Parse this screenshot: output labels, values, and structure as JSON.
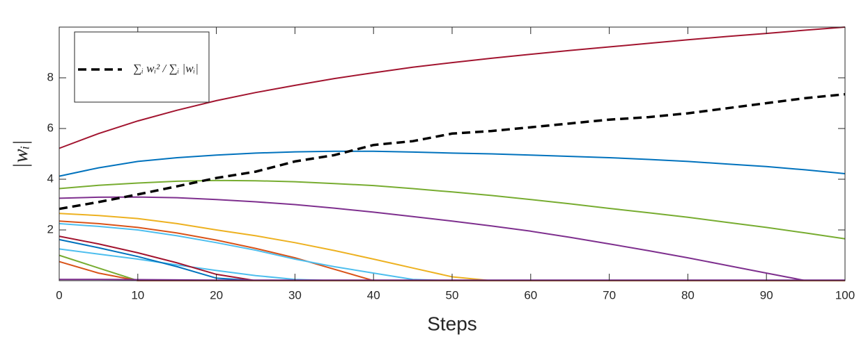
{
  "chart_data": {
    "type": "line",
    "xlabel": "Steps",
    "ylabel": "|wᵢ|",
    "x": [
      0,
      5,
      10,
      15,
      20,
      25,
      30,
      35,
      40,
      45,
      50,
      55,
      60,
      65,
      70,
      75,
      80,
      85,
      90,
      95,
      100
    ],
    "xlim": [
      0,
      100
    ],
    "xticks": [
      0,
      10,
      20,
      30,
      40,
      50,
      60,
      70,
      80,
      90,
      100
    ],
    "ylim": [
      0,
      10
    ],
    "yticks": [
      2,
      4,
      6,
      8
    ],
    "grid": false,
    "legend": "upper left",
    "series": [
      {
        "color": "#a2142f",
        "values": [
          5.22,
          5.8,
          6.3,
          6.72,
          7.1,
          7.42,
          7.7,
          7.97,
          8.2,
          8.42,
          8.6,
          8.77,
          8.93,
          9.08,
          9.22,
          9.36,
          9.5,
          9.63,
          9.75,
          9.88,
          10.0
        ]
      },
      {
        "color": "#0072bd",
        "values": [
          4.12,
          4.45,
          4.7,
          4.85,
          4.95,
          5.03,
          5.08,
          5.1,
          5.1,
          5.07,
          5.03,
          5.0,
          4.95,
          4.9,
          4.85,
          4.78,
          4.7,
          4.6,
          4.5,
          4.37,
          4.22
        ]
      },
      {
        "color": "#77ac30",
        "values": [
          3.63,
          3.76,
          3.85,
          3.92,
          3.95,
          3.94,
          3.9,
          3.83,
          3.75,
          3.63,
          3.5,
          3.36,
          3.2,
          3.03,
          2.85,
          2.68,
          2.5,
          2.3,
          2.1,
          1.88,
          1.65
        ]
      },
      {
        "color": "#7e2f8e",
        "values": [
          3.25,
          3.29,
          3.3,
          3.27,
          3.2,
          3.11,
          3.0,
          2.86,
          2.7,
          2.53,
          2.35,
          2.16,
          1.95,
          1.71,
          1.45,
          1.18,
          0.9,
          0.6,
          0.3,
          0,
          0
        ]
      },
      {
        "color": "#edb120",
        "values": [
          2.65,
          2.57,
          2.45,
          2.25,
          2.0,
          1.77,
          1.5,
          1.19,
          0.85,
          0.5,
          0.15,
          0,
          0,
          0,
          0,
          0,
          0,
          0,
          0,
          0,
          0
        ]
      },
      {
        "color": "#d95319",
        "values": [
          2.35,
          2.25,
          2.1,
          1.88,
          1.6,
          1.27,
          0.9,
          0.45,
          0,
          0,
          0,
          0,
          0,
          0,
          0,
          0,
          0,
          0,
          0,
          0,
          0
        ]
      },
      {
        "color": "#4dbeee",
        "values": [
          2.25,
          2.14,
          2.0,
          1.77,
          1.5,
          1.2,
          0.85,
          0.55,
          0.3,
          0.05,
          0,
          0,
          0,
          0,
          0,
          0,
          0,
          0,
          0,
          0,
          0
        ]
      },
      {
        "color": "#4dbeee",
        "values": [
          1.25,
          1.05,
          0.85,
          0.62,
          0.4,
          0.2,
          0.05,
          0,
          0,
          0,
          0,
          0,
          0,
          0,
          0,
          0,
          0,
          0,
          0,
          0,
          0
        ]
      },
      {
        "color": "#a2142f",
        "values": [
          1.75,
          1.45,
          1.1,
          0.7,
          0.25,
          0,
          0,
          0,
          0,
          0,
          0,
          0,
          0,
          0,
          0,
          0,
          0,
          0,
          0,
          0,
          0
        ]
      },
      {
        "color": "#0072bd",
        "values": [
          1.62,
          1.3,
          0.95,
          0.55,
          0.1,
          0,
          0,
          0,
          0,
          0,
          0,
          0,
          0,
          0,
          0,
          0,
          0,
          0,
          0,
          0,
          0
        ]
      },
      {
        "color": "#77ac30",
        "values": [
          1.0,
          0.5,
          0,
          0,
          0,
          0,
          0,
          0,
          0,
          0,
          0,
          0,
          0,
          0,
          0,
          0,
          0,
          0,
          0,
          0,
          0
        ]
      },
      {
        "color": "#d95319",
        "values": [
          0.75,
          0.3,
          0,
          0,
          0,
          0,
          0,
          0,
          0,
          0,
          0,
          0,
          0,
          0,
          0,
          0,
          0,
          0,
          0,
          0,
          0
        ]
      },
      {
        "color": "#7e2f8e",
        "values": [
          0.05,
          0.05,
          0.04,
          0.03,
          0.02,
          0.02,
          0.02,
          0.02,
          0.02,
          0.02,
          0.02,
          0.02,
          0.02,
          0.02,
          0.02,
          0.02,
          0.02,
          0.02,
          0.02,
          0.02,
          0.02
        ]
      },
      {
        "name": "∑ᵢ wᵢ² / ∑ᵢ |wᵢ|",
        "color": "#000000",
        "dashed": true,
        "values": [
          2.83,
          3.1,
          3.4,
          3.72,
          4.05,
          4.3,
          4.7,
          4.95,
          5.35,
          5.5,
          5.8,
          5.9,
          6.05,
          6.2,
          6.35,
          6.45,
          6.6,
          6.8,
          7.0,
          7.2,
          7.35
        ]
      }
    ]
  }
}
